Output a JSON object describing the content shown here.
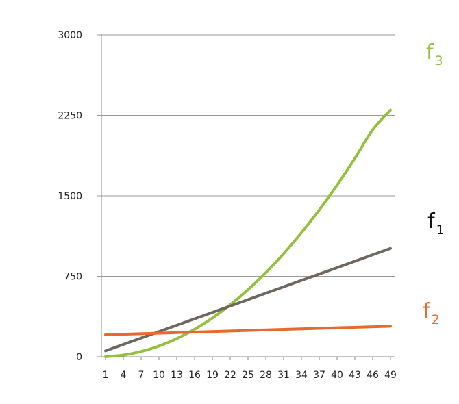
{
  "chart_data": {
    "type": "line",
    "title": "",
    "xlabel": "",
    "ylabel": "",
    "x_tick_labels": [
      "1",
      "4",
      "7",
      "10",
      "13",
      "16",
      "19",
      "22",
      "25",
      "28",
      "31",
      "34",
      "37",
      "40",
      "43",
      "46",
      "49"
    ],
    "xlim": [
      1,
      49
    ],
    "y_tick_labels": [
      "0",
      "750",
      "1500",
      "2250",
      "3000"
    ],
    "ylim": [
      0,
      3000
    ],
    "grid": true,
    "legend": "inline-right",
    "series": [
      {
        "name": "f3",
        "label_base": "f",
        "label_sub": "3",
        "color": "#93c13d",
        "x": [
          1,
          4,
          7,
          10,
          13,
          16,
          19,
          22,
          25,
          28,
          31,
          34,
          37,
          40,
          43,
          46,
          49
        ],
        "values": [
          1,
          16,
          49,
          100,
          169,
          256,
          361,
          484,
          625,
          784,
          961,
          1156,
          1369,
          1600,
          1849,
          2116,
          2300
        ]
      },
      {
        "name": "f1",
        "label_base": "f",
        "label_sub": "1",
        "color": "#6e675e",
        "x": [
          1,
          49
        ],
        "values": [
          55,
          1010
        ]
      },
      {
        "name": "f2",
        "label_base": "f",
        "label_sub": "2",
        "color": "#e8692b",
        "x": [
          1,
          49
        ],
        "values": [
          205,
          285
        ]
      }
    ]
  }
}
